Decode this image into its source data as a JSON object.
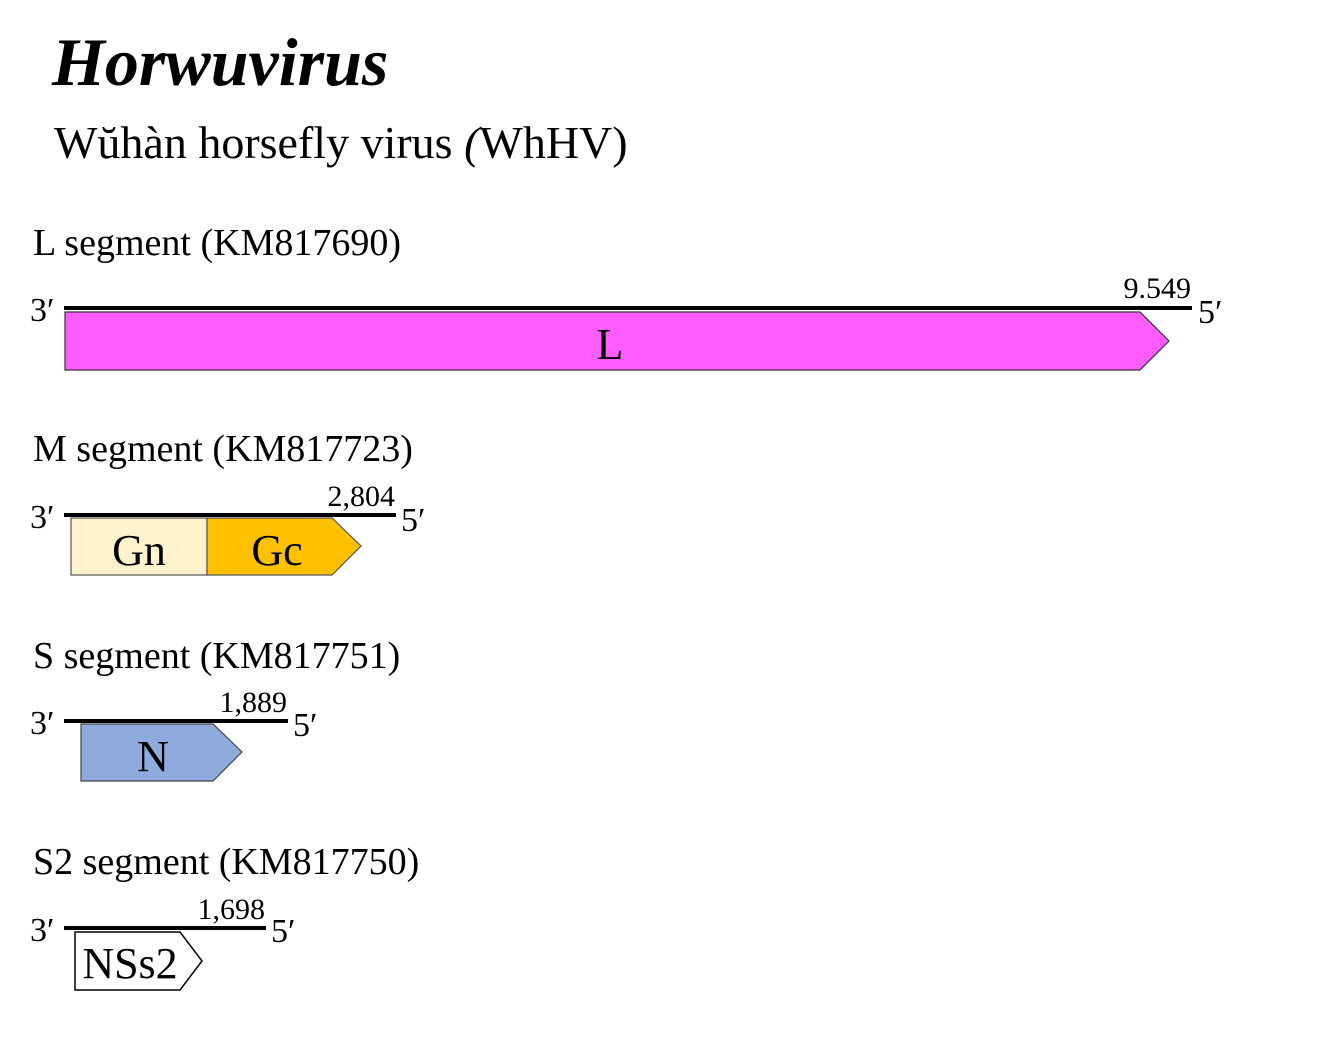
{
  "title": "Horwuvirus",
  "subtitle": {
    "name": "Wŭhàn horsefly virus ",
    "paren_open": "(",
    "abbr": "WhHV)"
  },
  "segments": [
    {
      "label": "L segment (KM817690)",
      "length_label": "9.549",
      "end3": "3′",
      "end5": "5′",
      "genes": [
        {
          "name": "L",
          "color": "#ff5cff"
        }
      ]
    },
    {
      "label": "M segment  (KM817723)",
      "length_label": "2,804",
      "end3": "3′",
      "end5": "5′",
      "genes": [
        {
          "name": "Gn",
          "color": "#fff2cc"
        },
        {
          "name": "Gc",
          "color": "#ffc000"
        }
      ]
    },
    {
      "label": "S segment (KM817751)",
      "length_label": "1,889",
      "end3": "3′",
      "end5": "5′",
      "genes": [
        {
          "name": "N",
          "color": "#8faadc"
        }
      ]
    },
    {
      "label": "S2 segment (KM817750)",
      "length_label": "1,698",
      "end3": "3′",
      "end5": "5′",
      "genes": [
        {
          "name": "NSs2",
          "color": "#ffffff"
        }
      ]
    }
  ]
}
